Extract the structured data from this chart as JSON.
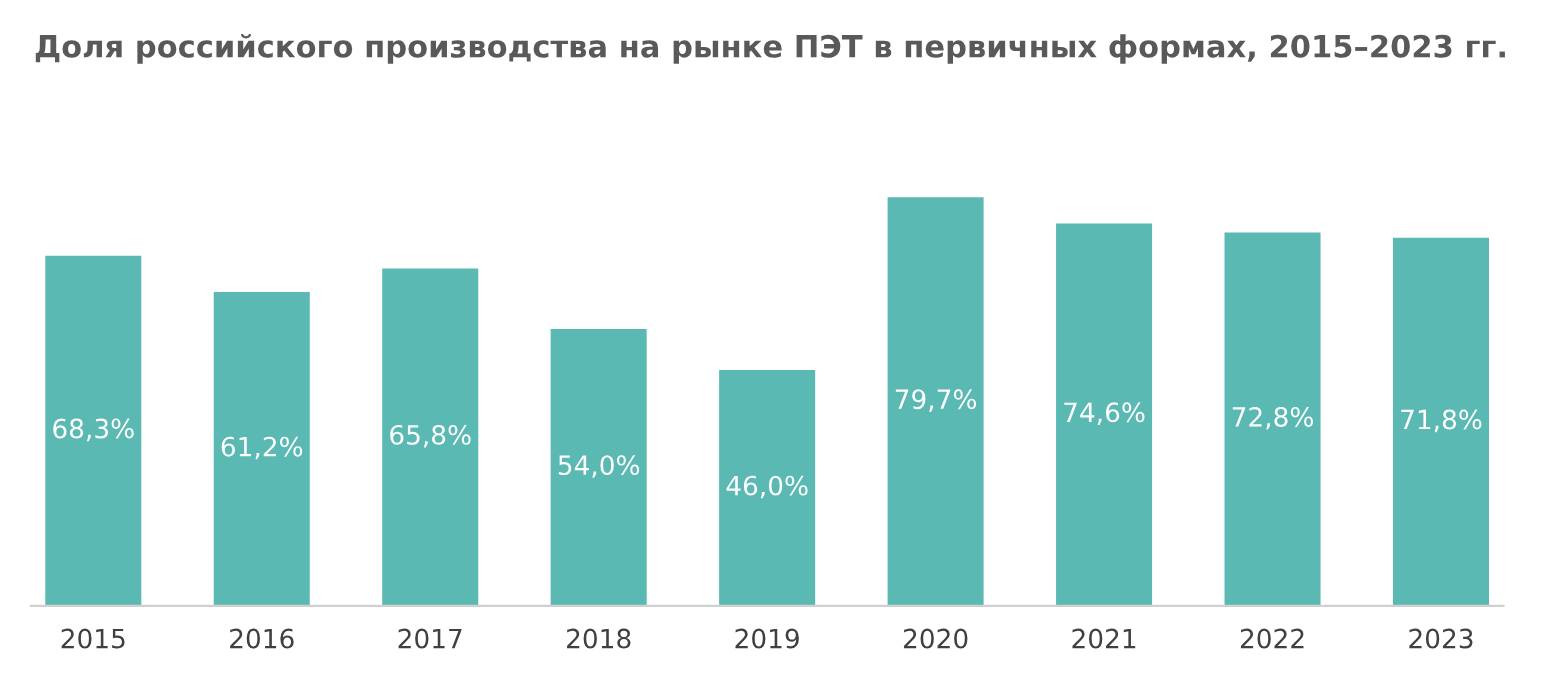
{
  "chart_data": {
    "type": "bar",
    "title": "Доля российского производства на рынке ПЭТ в первичных формах, 2015–2023 гг.",
    "categories": [
      "2015",
      "2016",
      "2017",
      "2018",
      "2019",
      "2020",
      "2021",
      "2022",
      "2023"
    ],
    "values": [
      68.3,
      61.2,
      65.8,
      54.0,
      46.0,
      79.7,
      74.6,
      72.8,
      71.8
    ],
    "value_labels": [
      "68,3%",
      "61,2%",
      "65,8%",
      "54,0%",
      "46,0%",
      "79,7%",
      "74,6%",
      "72,8%",
      "71,8%"
    ],
    "color": "#5bb9b4",
    "grid": false,
    "legend": false,
    "tick_labels": "x"
  }
}
